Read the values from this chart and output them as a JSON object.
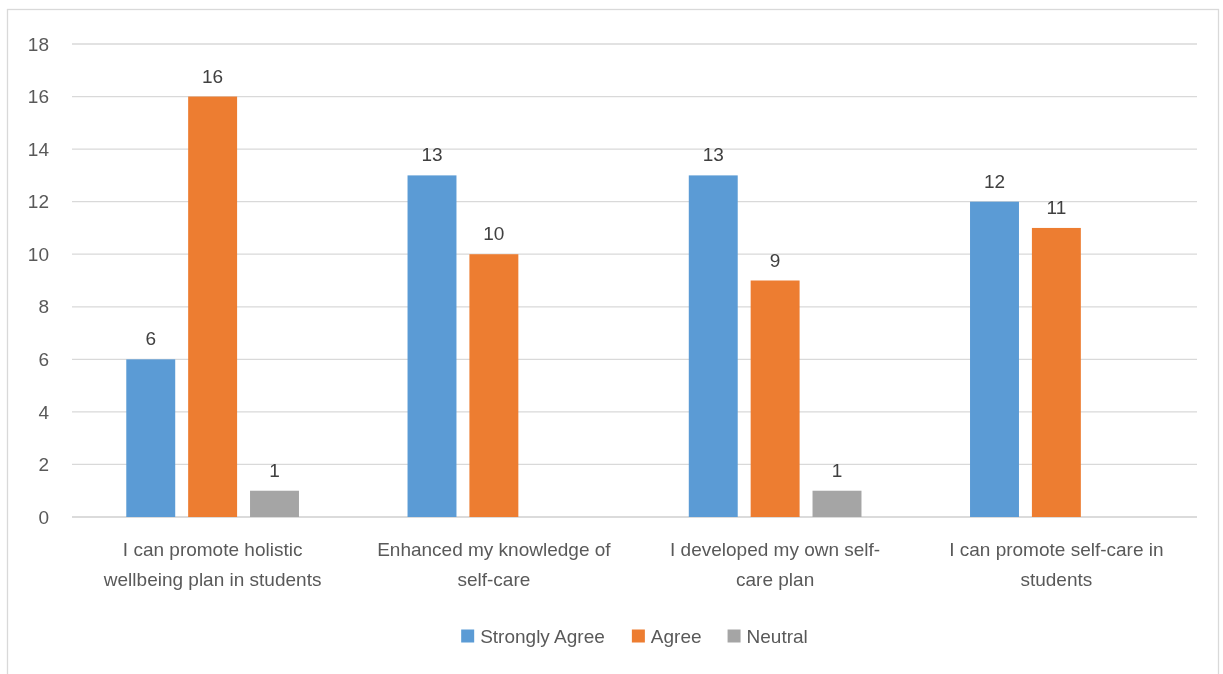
{
  "chart_data": {
    "type": "bar",
    "categories": [
      "I can promote holistic wellbeing plan in students",
      "Enhanced my knowledge of self-care",
      "I developed my own self-care plan",
      "I can promote self-care in students"
    ],
    "series": [
      {
        "name": "Strongly Agree",
        "color": "#5b9bd5",
        "values": [
          6,
          13,
          13,
          12
        ]
      },
      {
        "name": "Agree",
        "color": "#ed7d31",
        "values": [
          16,
          10,
          9,
          11
        ]
      },
      {
        "name": "Neutral",
        "color": "#a5a5a5",
        "values": [
          1,
          null,
          1,
          null
        ]
      }
    ],
    "ylim": [
      0,
      18
    ],
    "yticks": [
      0,
      2,
      4,
      6,
      8,
      10,
      12,
      14,
      16,
      18
    ],
    "grid": "y",
    "legend": "bottom",
    "data_labels": true
  }
}
